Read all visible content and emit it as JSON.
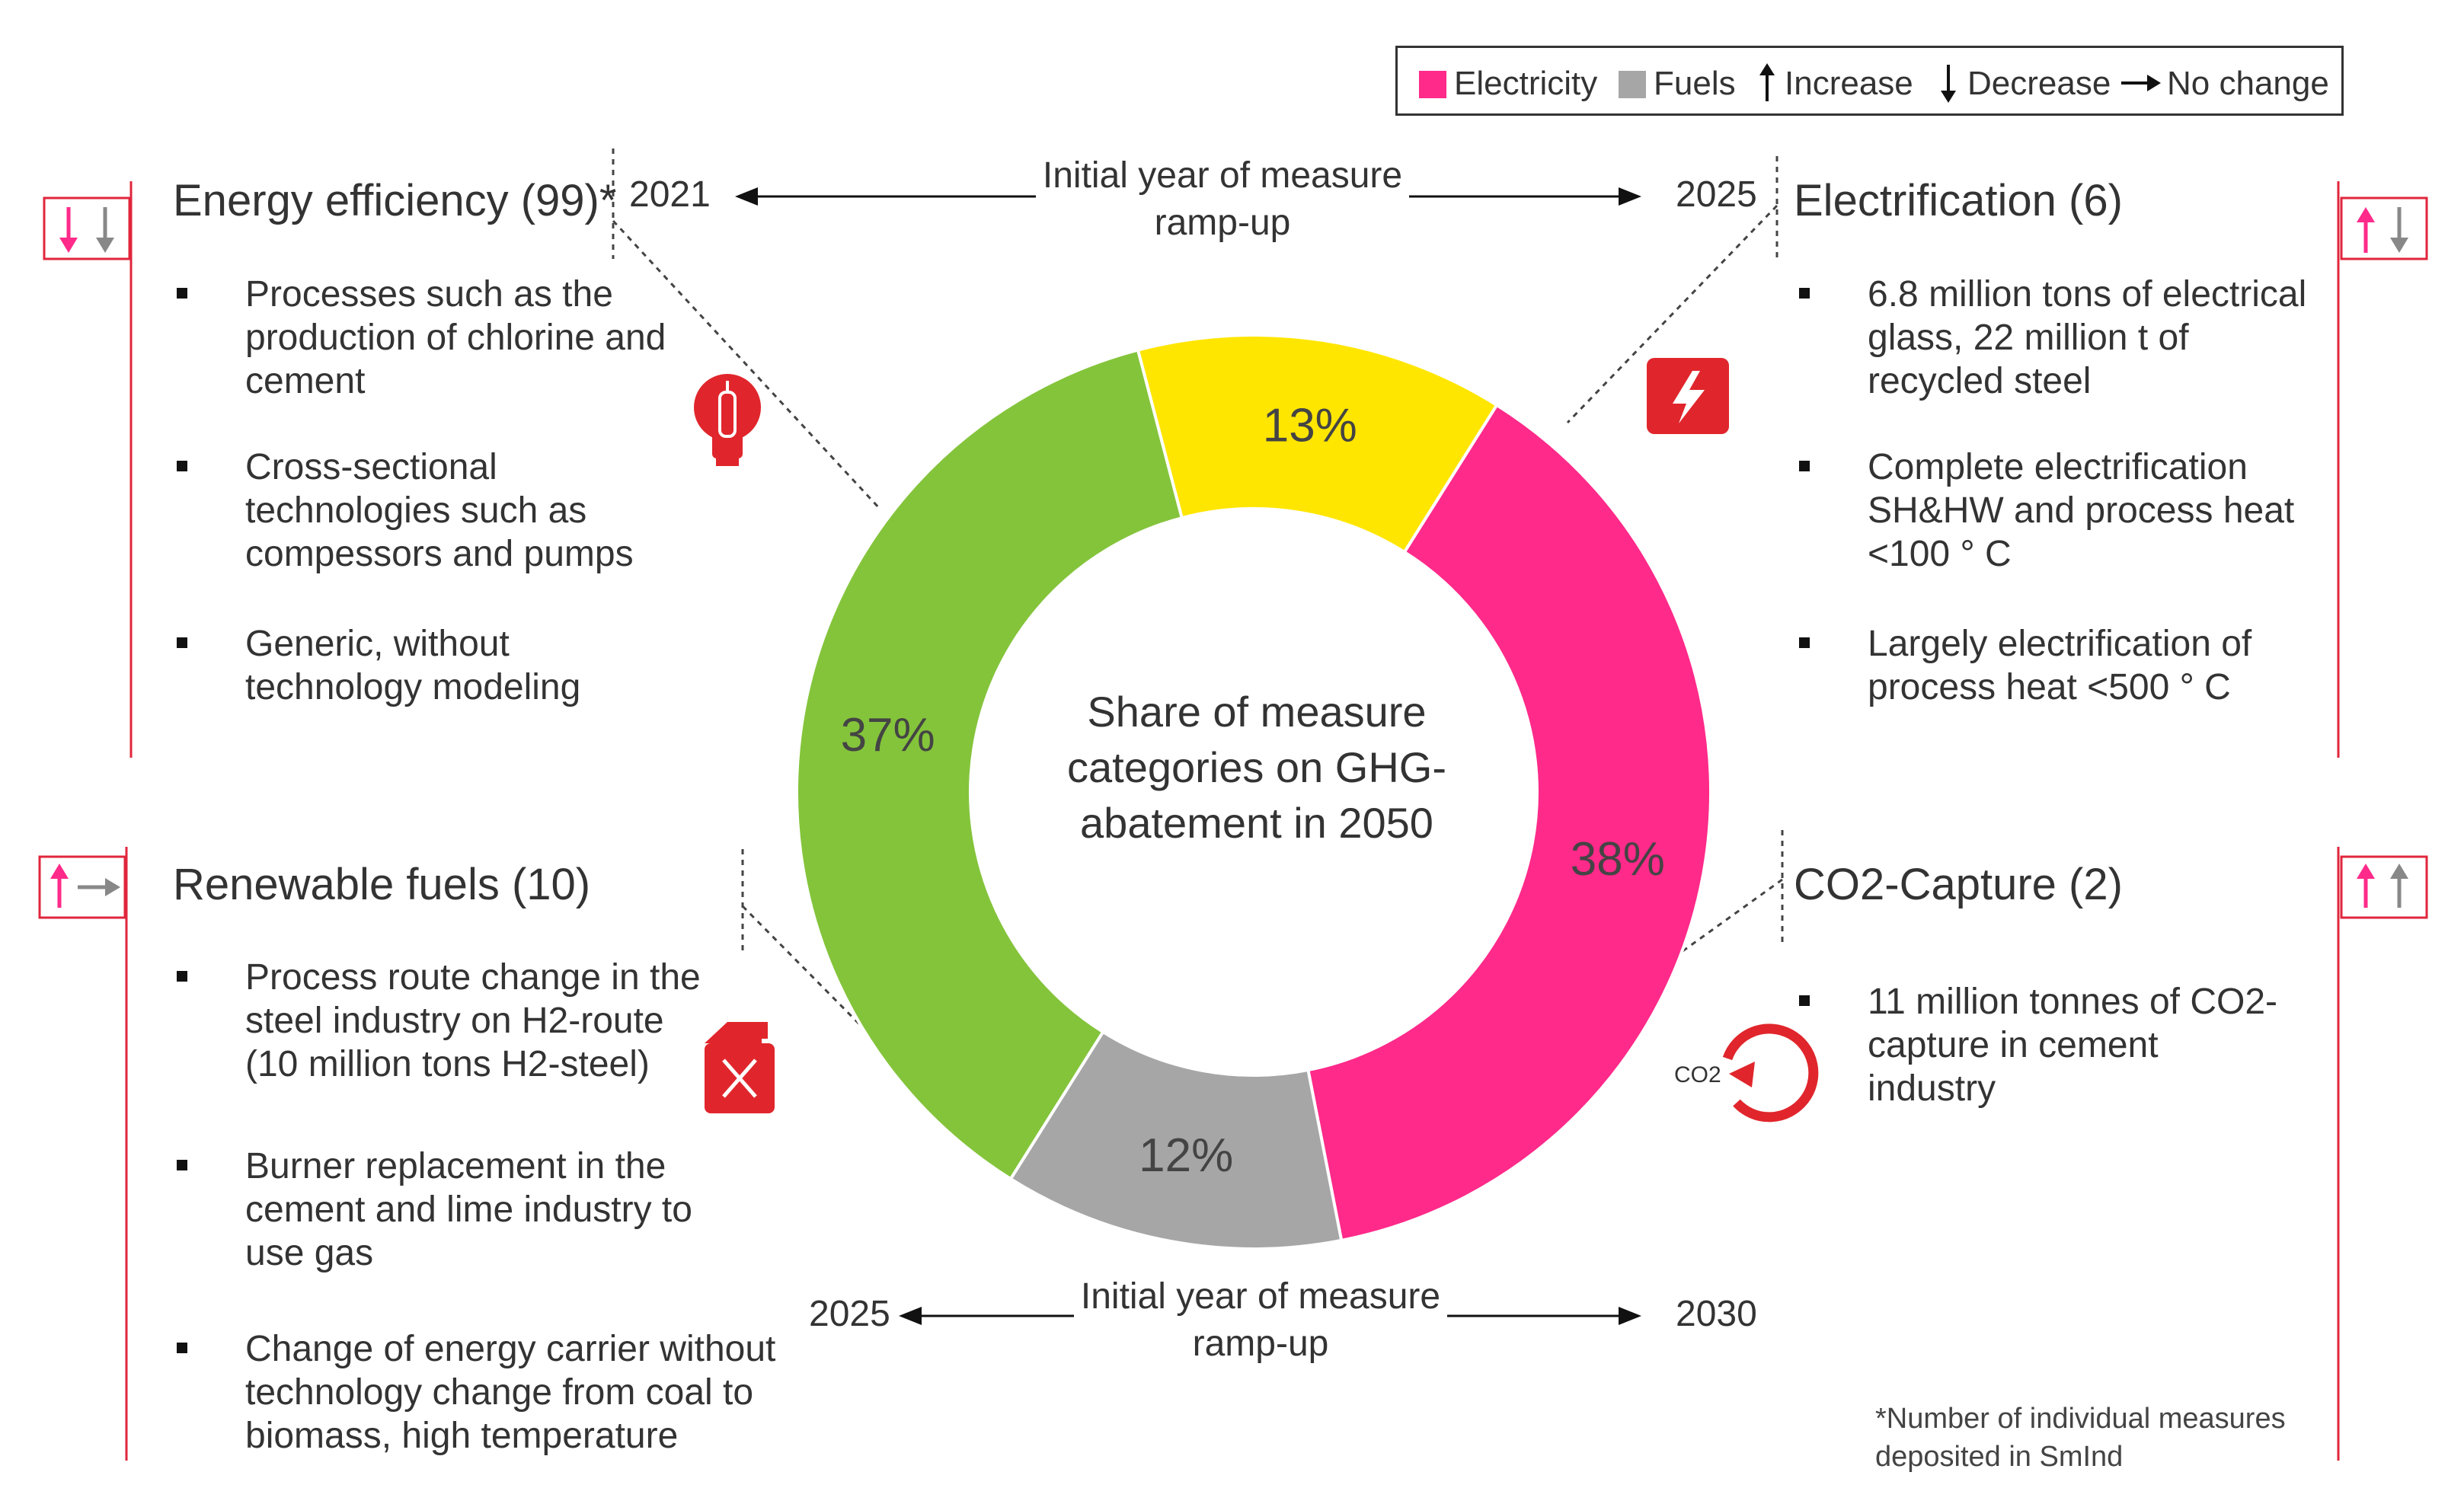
{
  "legend": {
    "electricity": "Electricity",
    "fuels": "Fuels",
    "increase": "Increase",
    "decrease": "Decrease",
    "no_change": "No change"
  },
  "colors": {
    "electrification": "#ff2a8a",
    "co2_capture": "#a6a6a6",
    "renewable_fuels": "#84c43b",
    "energy_efficiency": "#ffe600",
    "icon_red": "#e0262c",
    "bracket": "#e0263c"
  },
  "ramp_top": {
    "label": "Initial year of measure ramp-up",
    "start": "2021",
    "end": "2025"
  },
  "ramp_bottom": {
    "label": "Initial year of measure ramp-up",
    "start": "2025",
    "end": "2030"
  },
  "energy_efficiency": {
    "title": "Energy efficiency (99)*",
    "bullets": [
      "Processes such as the production of chlorine and cement",
      "Cross-sectional technologies such as compessors and pumps",
      "Generic, without technology modeling"
    ]
  },
  "electrification": {
    "title": "Electrification (6)",
    "bullets": [
      "6.8 million tons of electrical glass, 22 million t of recycled steel",
      "Complete electrification SH&HW and process heat <100 ° C",
      "Largely electrification of process heat <500 ° C"
    ]
  },
  "renewable_fuels": {
    "title": "Renewable fuels (10)",
    "bullets": [
      "Process route change in the steel industry on H2-route (10 million tons H2-steel)",
      "Burner replacement in the cement and lime industry to use gas",
      "Change of energy carrier without technology change from coal to biomass, high temperature"
    ]
  },
  "co2_capture": {
    "title": "CO2-Capture (2)",
    "bullets": [
      "11 million tonnes of CO2-capture in cement industry"
    ]
  },
  "footnote": "*Number of individual measures deposited in SmInd",
  "icons": {
    "co2_label": "CO2"
  },
  "chart_data": {
    "type": "pie",
    "subtype": "donut",
    "title": "Share of measure categories on GHG-abatement in 2050",
    "categories": [
      "Electrification",
      "CO2-Capture",
      "Renewable fuels",
      "Energy efficiency"
    ],
    "values": [
      38,
      12,
      37,
      13
    ],
    "labels": [
      "38%",
      "12%",
      "37%",
      "13%"
    ]
  }
}
